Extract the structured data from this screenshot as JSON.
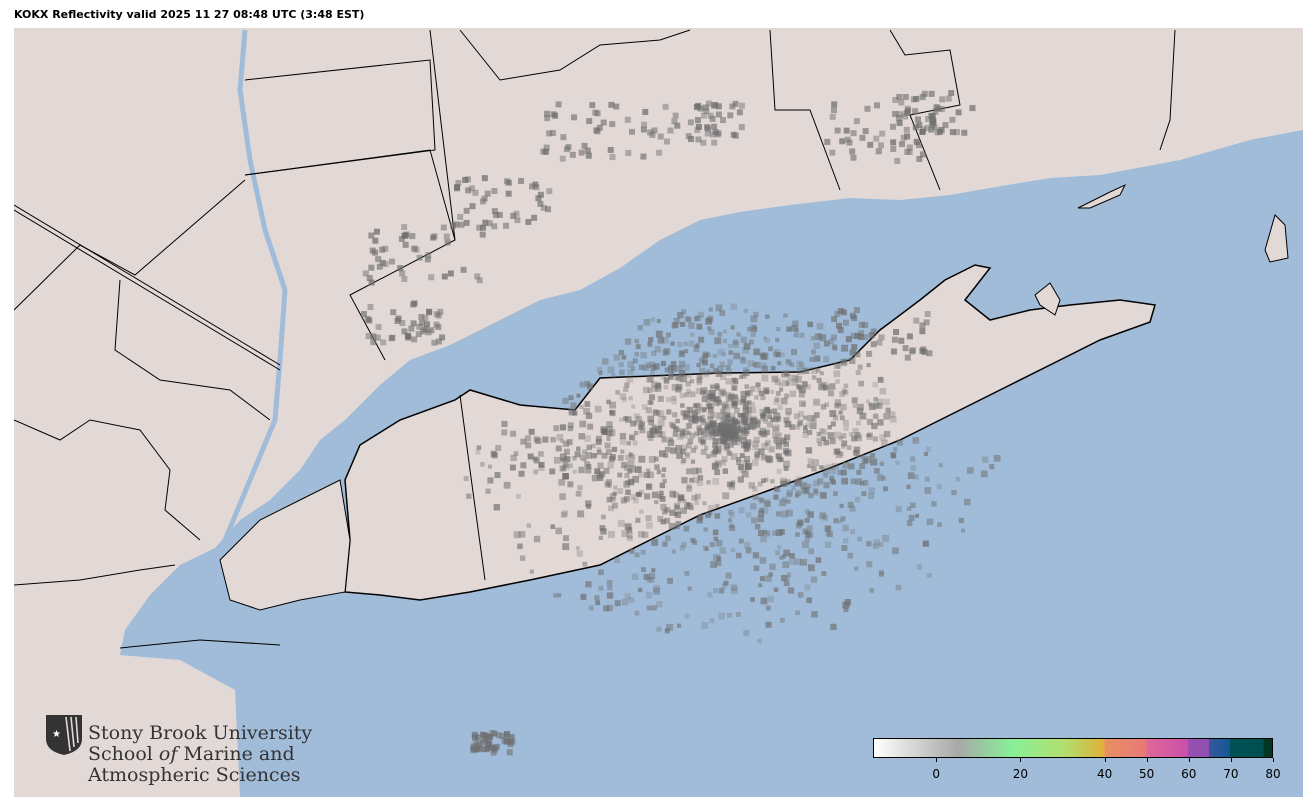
{
  "title": "KOKX Reflectivity valid 2025 11 27 08:48 UTC (3:48 EST)",
  "map": {
    "radar_site": "KOKX",
    "colors": {
      "land": "#e2d9d7",
      "water": "#a0bcd8",
      "border": "#000000",
      "echo": "#6e6e6e"
    }
  },
  "logo": {
    "line1": "Stony Brook University",
    "line2_a": "School ",
    "line2_b": "of",
    "line2_c": " Marine and",
    "line3": "Atmospheric Sciences"
  },
  "colorbar": {
    "units_range": [
      -15,
      80
    ],
    "ticks": [
      "0",
      "20",
      "40",
      "50",
      "60",
      "70",
      "80"
    ],
    "tick_values": [
      0,
      20,
      40,
      50,
      60,
      70,
      80
    ],
    "stops": [
      {
        "v": -15,
        "c": "#ffffff"
      },
      {
        "v": 5,
        "c": "#a8a8a8"
      },
      {
        "v": 18,
        "c": "#88f098"
      },
      {
        "v": 30,
        "c": "#b0e070"
      },
      {
        "v": 40,
        "c": "#e0b038"
      },
      {
        "v": 40.01,
        "c": "#e89060"
      },
      {
        "v": 50,
        "c": "#e87878"
      },
      {
        "v": 50.01,
        "c": "#e06898"
      },
      {
        "v": 60,
        "c": "#c850a8"
      },
      {
        "v": 60.01,
        "c": "#9850b0"
      },
      {
        "v": 65,
        "c": "#9050b0"
      },
      {
        "v": 65.01,
        "c": "#3858a0"
      },
      {
        "v": 70,
        "c": "#105890"
      },
      {
        "v": 70.01,
        "c": "#005058"
      },
      {
        "v": 78,
        "c": "#005050"
      },
      {
        "v": 78.01,
        "c": "#003828"
      },
      {
        "v": 80,
        "c": "#003828"
      }
    ]
  }
}
